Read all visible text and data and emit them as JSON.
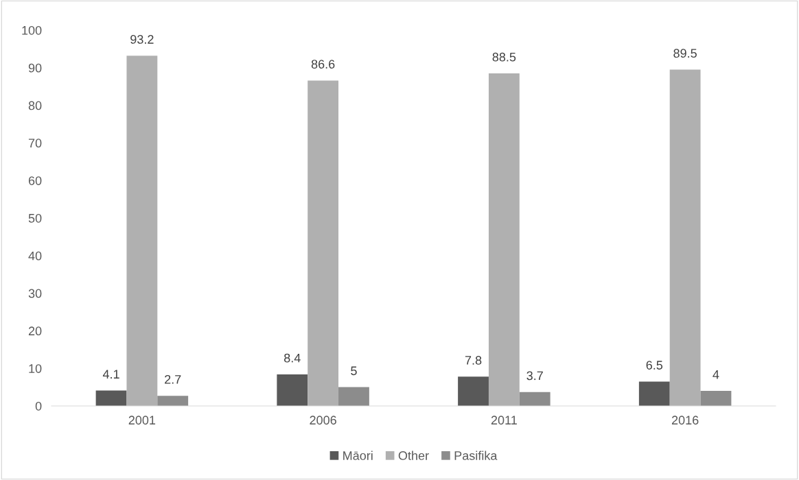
{
  "chart_data": {
    "type": "bar",
    "categories": [
      "2001",
      "2006",
      "2011",
      "2016"
    ],
    "series": [
      {
        "name": "Māori",
        "color": "#595959",
        "values": [
          4.1,
          8.4,
          7.8,
          6.5
        ]
      },
      {
        "name": "Other",
        "color": "#b0b0b0",
        "values": [
          93.2,
          86.6,
          88.5,
          89.5
        ]
      },
      {
        "name": "Pasifika",
        "color": "#8c8c8c",
        "values": [
          2.7,
          5,
          3.7,
          4
        ]
      }
    ],
    "ylim": [
      0,
      100
    ],
    "yticks": [
      0,
      10,
      20,
      30,
      40,
      50,
      60,
      70,
      80,
      90,
      100
    ],
    "data_labels": true,
    "grid": false,
    "legend": "bottom"
  }
}
